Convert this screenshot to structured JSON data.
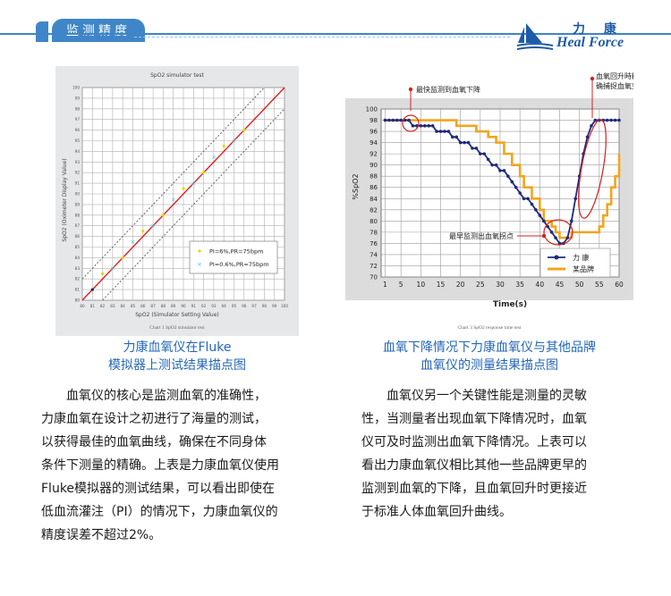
{
  "header": {
    "section_title": "监测精度",
    "brand_cn": "力 康",
    "brand_en": "Heal Force"
  },
  "chart_data": [
    {
      "type": "scatter",
      "title": "SpO2 simulator test",
      "xlabel": "SpO2 (Simulator Setting Value)",
      "ylabel": "SpO2 (Oximeter Display Value)",
      "xlim": [
        80,
        100
      ],
      "ylim": [
        80,
        100
      ],
      "xticks": [
        80,
        81,
        82,
        83,
        84,
        85,
        86,
        87,
        88,
        89,
        90,
        91,
        92,
        93,
        94,
        95,
        96,
        97,
        98,
        99,
        100
      ],
      "yticks": [
        80,
        81,
        82,
        83,
        84,
        85,
        86,
        87,
        88,
        89,
        90,
        91,
        92,
        93,
        94,
        95,
        96,
        97,
        98,
        99,
        100
      ],
      "grid": true,
      "legend_position": "bottom-right",
      "chart_caption": "Chart 1 SpO2 simulator test",
      "series": [
        {
          "name": "PI=6%,PR=75bpm",
          "color": "#e8d400",
          "marker": "dot",
          "x": [
            82,
            84,
            86,
            88,
            90,
            92,
            94,
            96
          ],
          "y": [
            82.5,
            84,
            86.5,
            88,
            90.5,
            92,
            94.5,
            96
          ]
        },
        {
          "name": "PI=0.6%,PR=75bpm",
          "color": "#52c7d9",
          "marker": "x",
          "x": [
            83,
            85,
            87,
            89,
            91,
            93,
            95
          ],
          "y": [
            83,
            85.5,
            87,
            89.5,
            91,
            93.5,
            95
          ]
        }
      ],
      "extra_points": [
        {
          "x": 81,
          "y": 81,
          "color": "#1a2a6a"
        }
      ],
      "lines": [
        {
          "type": "identity",
          "color": "#e01e1e",
          "style": "solid"
        },
        {
          "type": "limit",
          "offset": 2,
          "color": "#555555",
          "style": "dashed"
        },
        {
          "type": "limit",
          "offset": -2,
          "color": "#555555",
          "style": "dashed"
        }
      ]
    },
    {
      "type": "line",
      "chart_caption": "Chart 3 SpO2 response time test",
      "xlabel": "Time(s)",
      "ylabel": "%SpO2",
      "xlim": [
        0,
        60
      ],
      "ylim": [
        70,
        100
      ],
      "xticks": [
        1,
        5,
        10,
        15,
        20,
        25,
        30,
        35,
        40,
        45,
        50,
        55,
        60
      ],
      "yticks": [
        70,
        72,
        74,
        76,
        78,
        80,
        82,
        84,
        86,
        88,
        90,
        92,
        94,
        96,
        98,
        100
      ],
      "grid": true,
      "legend_position": "bottom-right",
      "series": [
        {
          "name": "力 康",
          "color": "#1f2a7a",
          "marker": "dot",
          "x": [
            1,
            2,
            3,
            4,
            5,
            6,
            7,
            8,
            9,
            10,
            11,
            12,
            13,
            14,
            15,
            16,
            17,
            18,
            19,
            20,
            21,
            22,
            23,
            24,
            25,
            26,
            27,
            28,
            29,
            30,
            31,
            32,
            33,
            34,
            35,
            36,
            37,
            38,
            39,
            40,
            41,
            42,
            43,
            44,
            45,
            46,
            47,
            48,
            49,
            50,
            51,
            52,
            53,
            54,
            55,
            56,
            57,
            58,
            59,
            60
          ],
          "y": [
            98,
            98,
            98,
            98,
            98,
            98,
            98,
            97,
            97,
            97,
            97,
            97,
            97,
            96,
            96,
            96,
            96,
            95,
            95,
            94,
            94,
            94,
            93,
            93,
            92,
            92,
            91,
            90,
            90,
            89,
            89,
            88,
            87,
            86,
            85,
            84,
            84,
            83,
            82,
            81,
            80,
            79,
            78,
            77,
            76,
            76,
            77,
            80,
            84,
            88,
            92,
            95,
            97,
            98,
            98,
            98,
            98,
            98,
            98,
            98
          ]
        },
        {
          "name": "某品牌",
          "color": "#f2a51c",
          "marker": "line",
          "x": [
            1,
            2,
            3,
            4,
            5,
            6,
            7,
            8,
            9,
            10,
            11,
            12,
            13,
            14,
            15,
            16,
            17,
            18,
            19,
            20,
            21,
            22,
            23,
            24,
            25,
            26,
            27,
            28,
            29,
            30,
            31,
            32,
            33,
            34,
            35,
            36,
            37,
            38,
            39,
            40,
            41,
            42,
            43,
            44,
            45,
            46,
            47,
            48,
            49,
            50,
            51,
            52,
            53,
            54,
            55,
            56,
            57,
            58,
            59,
            60
          ],
          "y": [
            98,
            98,
            98,
            98,
            98,
            98,
            98,
            98,
            98,
            98,
            98,
            98,
            98,
            98,
            98,
            98,
            98,
            98,
            97,
            97,
            97,
            97,
            97,
            96,
            96,
            96,
            95,
            95,
            94,
            94,
            92,
            92,
            90,
            90,
            88,
            86,
            86,
            84,
            84,
            82,
            80,
            80,
            79,
            78,
            77,
            77,
            77,
            78,
            78,
            78,
            78,
            78,
            78,
            78,
            79,
            81,
            83,
            86,
            88,
            92
          ]
        }
      ],
      "annotations": [
        {
          "text": "最快监测到血氧下降"
        },
        {
          "text": "血氧回升時精确捕捉血氧变化"
        },
        {
          "text": "最早监测出血氧拐点"
        }
      ]
    }
  ],
  "captions": {
    "left_line1": "力康血氧仪在Fluke",
    "left_line2": "模拟器上测试结果描点图",
    "right_line1": "血氧下降情况下力康血氧仪与其他品牌",
    "right_line2": "血氧仪的测量结果描点图"
  },
  "paragraphs": {
    "left": [
      "　　血氧仪的核心是监测血氧的准确性，",
      "力康血氧在设计之初进行了海量的测试，",
      "以获得最佳的血氧曲线，确保在不同身体",
      "条件下测量的精确。上表是力康血氧仪使用",
      "Fluke模拟器的测试结果，可以看出即使在",
      "低血流灌注（PI）的情况下，力康血氧仪的",
      "精度误差不超过2%。"
    ],
    "right": [
      "　　血氧仪另一个关键性能是测量的灵敏",
      "性，当测量者出现血氧下降情况时，血氧",
      "仪可及时监测出血氧下降情况。上表可以",
      "看出力康血氧仪相比其他一些品牌更早的",
      "监测到血氧的下降，且血氧回升时更接近",
      "于标准人体血氧回升曲线。"
    ]
  }
}
